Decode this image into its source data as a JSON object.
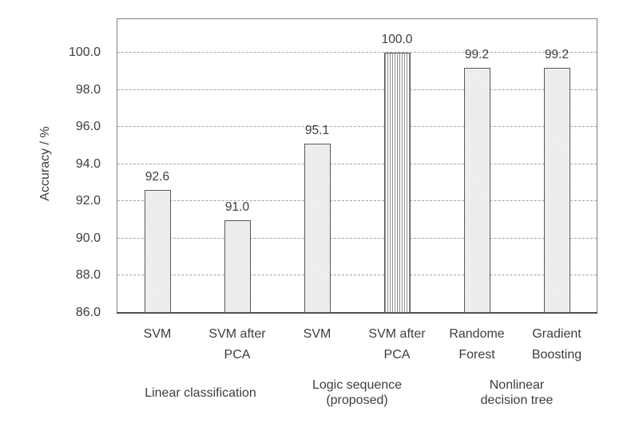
{
  "chart_data": {
    "type": "bar",
    "title": "",
    "xlabel": "",
    "ylabel": "Accuracy / %",
    "ylim": [
      86.0,
      101.8
    ],
    "yticks": [
      86.0,
      88.0,
      90.0,
      92.0,
      94.0,
      96.0,
      98.0,
      100.0
    ],
    "ytick_labels": [
      "86.0",
      "88.0",
      "90.0",
      "92.0",
      "94.0",
      "96.0",
      "98.0",
      "100.0"
    ],
    "grid": "horizontal dashed gridlines on",
    "legend": "none",
    "categories": [
      "SVM",
      "SVM after PCA",
      "SVM",
      "SVM after PCA",
      "Randome Forest",
      "Gradient Boosting"
    ],
    "category_label_lines": [
      [
        "SVM"
      ],
      [
        "SVM after",
        "PCA"
      ],
      [
        "SVM"
      ],
      [
        "SVM after",
        "PCA"
      ],
      [
        "Randome",
        "Forest"
      ],
      [
        "Gradient",
        "Boosting"
      ]
    ],
    "values": [
      92.6,
      91.0,
      95.1,
      100.0,
      99.2,
      99.2
    ],
    "value_labels": [
      "92.6",
      "91.0",
      "95.1",
      "100.0",
      "99.2",
      "99.2"
    ],
    "bar_styles": [
      "solid",
      "solid",
      "solid",
      "vertical-stripes",
      "solid",
      "solid"
    ],
    "groups": [
      {
        "label": "Linear classification",
        "lines": [
          "Linear classification"
        ],
        "bar_indexes": [
          0,
          1
        ]
      },
      {
        "label": "Logic sequence (proposed)",
        "lines": [
          "Logic sequence",
          "(proposed)"
        ],
        "bar_indexes": [
          2,
          3
        ]
      },
      {
        "label": "Nonlinear decision tree",
        "lines": [
          "Nonlinear",
          "decision tree"
        ],
        "bar_indexes": [
          4,
          5
        ]
      }
    ],
    "colors": {
      "background": "#ffffff",
      "bar_fill": "#ededed",
      "bar_border": "#595959",
      "stripe_color": "#8f8f8f",
      "gridline_color": "#a3a3a3",
      "frame_color": "#808080",
      "axis_line_color": "#4d4d4d",
      "text_color": "#3d3d3d"
    }
  }
}
